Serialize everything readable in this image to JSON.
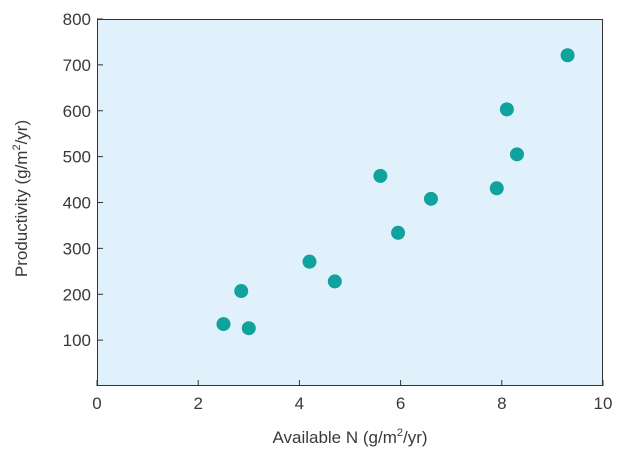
{
  "colors": {
    "plot_background": "#e0f1fc",
    "point": "#10a29c",
    "axis": "#333333",
    "text": "#3a3a3a"
  },
  "chart_data": {
    "type": "scatter",
    "title": "",
    "xlabel": {
      "before": "Available N (g/m",
      "superscript": "2",
      "after": "/yr)"
    },
    "ylabel": {
      "before": "Productivity (g/m",
      "superscript": "2",
      "after": "/yr)"
    },
    "xlim": [
      0,
      10
    ],
    "ylim": [
      0,
      800
    ],
    "x_ticks": [
      0,
      2,
      4,
      6,
      8,
      10
    ],
    "y_ticks": [
      100,
      200,
      300,
      400,
      500,
      600,
      700,
      800
    ],
    "x_tick_labels": [
      "0",
      "2",
      "4",
      "6",
      "8",
      "10"
    ],
    "y_tick_labels": [
      "100",
      "200",
      "300",
      "400",
      "500",
      "600",
      "700",
      "800"
    ],
    "grid": false,
    "points": [
      {
        "x": 2.5,
        "y": 135
      },
      {
        "x": 2.85,
        "y": 207
      },
      {
        "x": 3.0,
        "y": 126
      },
      {
        "x": 4.2,
        "y": 271
      },
      {
        "x": 4.7,
        "y": 228
      },
      {
        "x": 5.6,
        "y": 458
      },
      {
        "x": 5.95,
        "y": 334
      },
      {
        "x": 6.6,
        "y": 408
      },
      {
        "x": 7.9,
        "y": 431
      },
      {
        "x": 8.1,
        "y": 603
      },
      {
        "x": 8.3,
        "y": 505
      },
      {
        "x": 9.3,
        "y": 721
      }
    ]
  }
}
